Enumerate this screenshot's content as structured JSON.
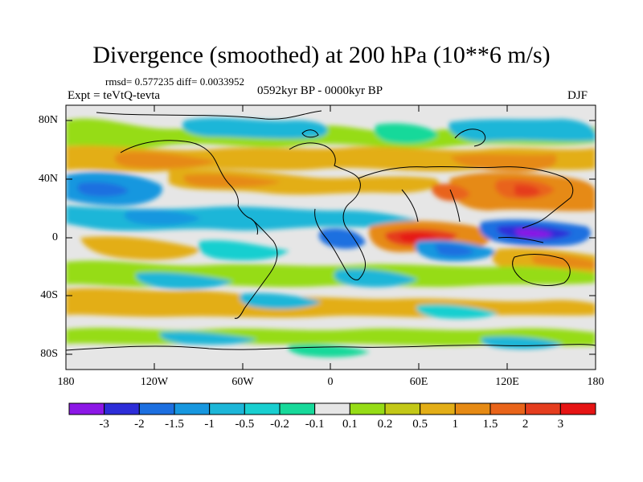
{
  "title": "Divergence (smoothed) at 200 hPa (10**6 m/s)",
  "stats": "rmsd= 0.577235 diff= 0.0033952",
  "experiment": "Expt = teVtQ-tevta",
  "period": "0592kyr BP - 0000kyr BP",
  "season": "DJF",
  "lat_labels": [
    "80N",
    "40N",
    "0",
    "40S",
    "80S"
  ],
  "lon_labels": [
    "180",
    "120W",
    "60W",
    "0",
    "60E",
    "120E",
    "180"
  ],
  "colorbar": {
    "labels": [
      "-3",
      "-2",
      "-1.5",
      "-1",
      "-0.5",
      "-0.2",
      "-0.1",
      "0.1",
      "0.2",
      "0.5",
      "1",
      "1.5",
      "2",
      "3"
    ],
    "colors": [
      "#8c17e6",
      "#2d2dd8",
      "#1c6fe0",
      "#1797df",
      "#1cb6d8",
      "#19cfd0",
      "#17d99a",
      "#e6e6e6",
      "#96dc16",
      "#c3c817",
      "#e3ae17",
      "#e68a14",
      "#e9641a",
      "#e53d1e",
      "#e61414"
    ]
  }
}
